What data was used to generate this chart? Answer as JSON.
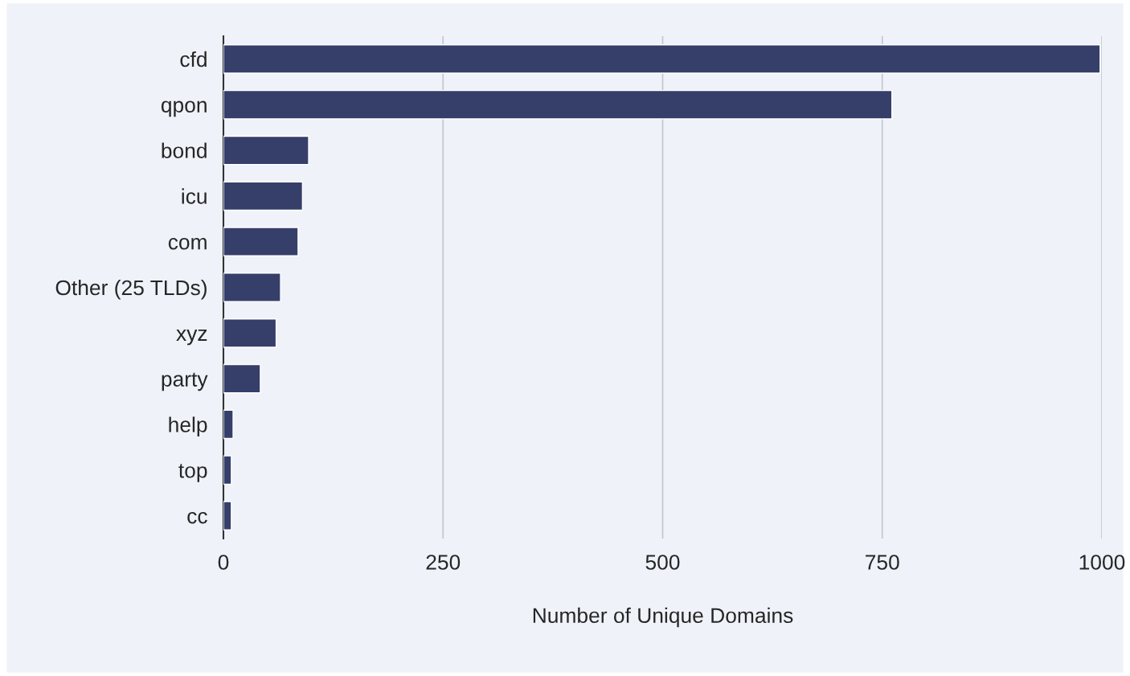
{
  "chart_data": {
    "type": "bar",
    "orientation": "horizontal",
    "xlabel": "Number of Unique Domains",
    "categories": [
      "cfd",
      "qpon",
      "bond",
      "icu",
      "com",
      "Other (25 TLDs)",
      "xyz",
      "party",
      "help",
      "top",
      "cc"
    ],
    "values": [
      998,
      761,
      97,
      90,
      85,
      65,
      60,
      42,
      11,
      9,
      9
    ],
    "color": "#363f6a",
    "xlim": [
      0,
      1000
    ],
    "xticks": [
      0,
      250,
      500,
      750,
      1000
    ],
    "grid": "x"
  }
}
